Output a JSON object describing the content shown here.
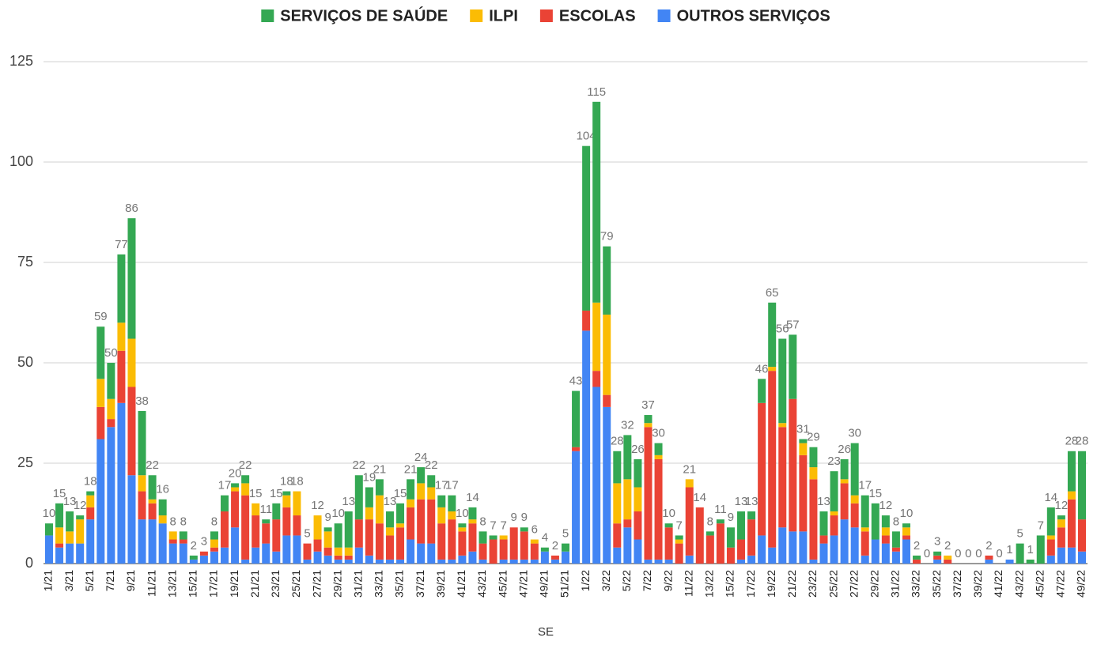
{
  "chart_data": {
    "type": "stacked_bar",
    "x_label": "SE",
    "categories": [
      "1/21",
      null,
      "3/21",
      null,
      "5/21",
      null,
      "7/21",
      null,
      "9/21",
      null,
      "11/21",
      null,
      "13/21",
      null,
      "15/21",
      null,
      "17/21",
      null,
      "19/21",
      null,
      "21/21",
      null,
      "23/21",
      null,
      "25/21",
      null,
      "27/21",
      null,
      "29/21",
      null,
      "31/21",
      null,
      "33/21",
      null,
      "35/21",
      null,
      "37/21",
      null,
      "39/21",
      null,
      "41/21",
      null,
      "43/21",
      null,
      "45/21",
      null,
      "47/21",
      null,
      "49/21",
      null,
      "51/21",
      null,
      "1/22",
      null,
      "3/22",
      null,
      "5/22",
      null,
      "7/22",
      null,
      "9/22",
      null,
      "11/22",
      null,
      "13/22",
      null,
      "15/22",
      null,
      "17/22",
      null,
      "19/22",
      null,
      "21/22",
      null,
      "23/22",
      null,
      "25/22",
      null,
      "27/22",
      null,
      "29/22",
      null,
      "31/22",
      null,
      "33/22",
      null,
      "35/22",
      null,
      "37/22",
      null,
      "39/22",
      null,
      "41/22",
      null,
      "43/22",
      null,
      "45/22",
      null,
      "47/22",
      null,
      "49/22"
    ],
    "series": [
      {
        "name": "SERVIÇOS DE SAÚDE",
        "color": "#34a853",
        "values": [
          3,
          6,
          5,
          1,
          1,
          13,
          9,
          17,
          30,
          16,
          6,
          4,
          0,
          2,
          1,
          0,
          2,
          4,
          1,
          2,
          0,
          1,
          4,
          1,
          0,
          0,
          0,
          1,
          6,
          9,
          11,
          5,
          4,
          4,
          5,
          5,
          4,
          3,
          3,
          4,
          1,
          3,
          3,
          1,
          0,
          0,
          1,
          0,
          1,
          0,
          2,
          14,
          41,
          50,
          17,
          8,
          11,
          7,
          2,
          3,
          1,
          1,
          0,
          0,
          1,
          1,
          5,
          7,
          2,
          6,
          16,
          21,
          16,
          1,
          5,
          6,
          10,
          5,
          13,
          8,
          9,
          3,
          4,
          1,
          1,
          0,
          1,
          0,
          0,
          0,
          0,
          0,
          0,
          0,
          5,
          1,
          7,
          7,
          1,
          10,
          17
        ]
      },
      {
        "name": "ILPI",
        "color": "#fbbc04",
        "values": [
          0,
          4,
          3,
          6,
          3,
          7,
          5,
          7,
          12,
          4,
          1,
          2,
          2,
          0,
          0,
          0,
          2,
          0,
          1,
          3,
          3,
          0,
          0,
          3,
          6,
          0,
          6,
          4,
          2,
          2,
          0,
          3,
          7,
          2,
          1,
          2,
          4,
          3,
          4,
          2,
          1,
          1,
          0,
          0,
          1,
          0,
          0,
          1,
          0,
          0,
          0,
          0,
          0,
          17,
          20,
          10,
          10,
          6,
          1,
          1,
          0,
          1,
          2,
          0,
          0,
          0,
          0,
          0,
          0,
          0,
          1,
          1,
          0,
          3,
          3,
          0,
          1,
          1,
          2,
          1,
          0,
          2,
          0,
          2,
          0,
          0,
          0,
          1,
          0,
          0,
          0,
          0,
          0,
          0,
          0,
          0,
          0,
          1,
          2,
          2,
          0
        ]
      },
      {
        "name": "ESCOLAS",
        "color": "#ea4335",
        "values": [
          0,
          1,
          0,
          0,
          3,
          8,
          2,
          13,
          22,
          7,
          4,
          0,
          1,
          1,
          0,
          1,
          1,
          9,
          9,
          16,
          8,
          5,
          8,
          7,
          5,
          4,
          3,
          2,
          1,
          1,
          7,
          9,
          9,
          6,
          8,
          8,
          11,
          11,
          9,
          10,
          6,
          7,
          4,
          6,
          5,
          8,
          7,
          4,
          0,
          1,
          0,
          1,
          5,
          4,
          3,
          6,
          2,
          7,
          33,
          25,
          8,
          5,
          17,
          14,
          7,
          10,
          4,
          5,
          9,
          33,
          44,
          25,
          33,
          19,
          20,
          2,
          5,
          9,
          6,
          6,
          0,
          2,
          1,
          1,
          1,
          0,
          1,
          1,
          0,
          0,
          0,
          1,
          0,
          0,
          0,
          0,
          0,
          4,
          5,
          12,
          8
        ]
      },
      {
        "name": "OUTROS SERVIÇOS",
        "color": "#4285f4",
        "values": [
          7,
          4,
          5,
          5,
          11,
          31,
          34,
          40,
          22,
          11,
          11,
          10,
          5,
          5,
          1,
          2,
          3,
          4,
          9,
          1,
          4,
          5,
          3,
          7,
          7,
          1,
          3,
          2,
          1,
          1,
          4,
          2,
          1,
          1,
          1,
          6,
          5,
          5,
          1,
          1,
          2,
          3,
          1,
          0,
          1,
          1,
          1,
          1,
          3,
          1,
          3,
          28,
          58,
          44,
          39,
          4,
          9,
          6,
          1,
          1,
          1,
          0,
          2,
          0,
          0,
          0,
          0,
          1,
          2,
          7,
          4,
          9,
          8,
          8,
          1,
          5,
          7,
          11,
          9,
          2,
          6,
          5,
          3,
          6,
          0,
          0,
          1,
          0,
          0,
          0,
          0,
          1,
          0,
          1,
          0,
          0,
          0,
          2,
          4,
          4,
          3
        ]
      }
    ],
    "totals": [
      10,
      15,
      13,
      12,
      18,
      59,
      50,
      77,
      86,
      38,
      22,
      16,
      8,
      8,
      2,
      3,
      8,
      17,
      20,
      22,
      15,
      11,
      15,
      18,
      18,
      5,
      12,
      9,
      10,
      13,
      22,
      19,
      21,
      13,
      15,
      21,
      24,
      22,
      17,
      17,
      10,
      14,
      8,
      7,
      7,
      9,
      9,
      6,
      4,
      2,
      5,
      43,
      104,
      115,
      79,
      28,
      32,
      26,
      37,
      30,
      10,
      7,
      21,
      14,
      8,
      11,
      9,
      13,
      13,
      46,
      65,
      56,
      57,
      31,
      29,
      13,
      23,
      26,
      30,
      17,
      15,
      12,
      8,
      10,
      2,
      0,
      3,
      2,
      0,
      0,
      0,
      2,
      0,
      1,
      5,
      1,
      7,
      14,
      12,
      28,
      28
    ],
    "ylim": [
      0,
      125
    ],
    "yticks": [
      0,
      25,
      50,
      75,
      100,
      125
    ],
    "grid": true,
    "legend": "top"
  }
}
